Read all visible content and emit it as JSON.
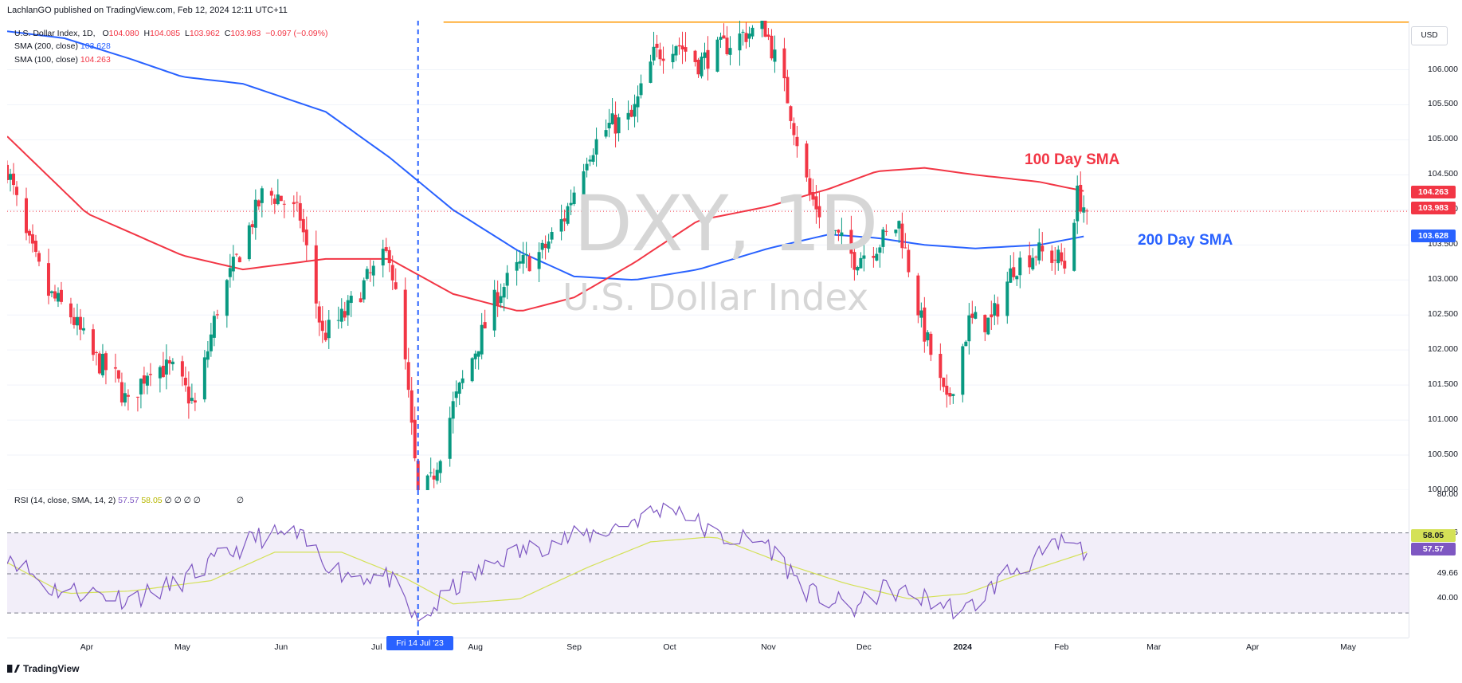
{
  "header": {
    "publisher_line": "LachlanGO published on TradingView.com, Feb 12, 2024 12:11 UTC+11"
  },
  "legend": {
    "symbol": "U.S. Dollar Index, 1D,",
    "o_label": "O",
    "o_value": "104.080",
    "h_label": "H",
    "h_value": "104.085",
    "l_label": "L",
    "l_value": "103.962",
    "c_label": "C",
    "c_value": "103.983",
    "change": "−0.097 (−0.09%)",
    "sma200_label": "SMA (200, close)",
    "sma200_value": "103.628",
    "sma100_label": "SMA (100, close)",
    "sma100_value": "104.263",
    "rsi_label": "RSI (14, close, SMA, 14, 2)",
    "rsi_value": "57.57",
    "rsi_sma_value": "58.05",
    "rsi_extra": "∅ ∅ ∅ ∅",
    "rsi_extra2": "∅"
  },
  "watermark": {
    "symbol": "DXY, 1D",
    "name": "U.S. Dollar Index"
  },
  "annotations": {
    "sma100": "100 Day SMA",
    "sma200": "200 Day SMA"
  },
  "price_axis": {
    "currency_button": "USD",
    "ticks": [
      "106.000",
      "105.500",
      "105.000",
      "104.500",
      "104.000",
      "103.500",
      "103.000",
      "102.500",
      "102.000",
      "101.500",
      "101.000",
      "100.500",
      "100.000"
    ],
    "badges": {
      "sma100": "104.263",
      "close": "103.983",
      "sma200": "103.628"
    }
  },
  "rsi_axis": {
    "ticks": [
      "80.00",
      "65.46",
      "49.66",
      "40.00"
    ],
    "badges": {
      "sma": "58.05",
      "rsi": "57.57"
    }
  },
  "time_axis": {
    "months": [
      "Apr",
      "May",
      "Jun",
      "Jul",
      "Aug",
      "Sep",
      "Oct",
      "Nov",
      "Dec",
      "2024",
      "Feb",
      "Mar",
      "Apr",
      "May"
    ],
    "crosshair_label": "Fri 14 Jul '23"
  },
  "footer": {
    "brand": "TradingView"
  },
  "colors": {
    "up": "#089981",
    "down": "#f23645",
    "sma100": "#f23645",
    "sma200": "#2962ff",
    "rsi": "#7e57c2",
    "rsi_sma": "#d4e157",
    "resistance": "#ff9800",
    "crosshair": "#2962ff"
  },
  "chart_data": {
    "type": "candlestick",
    "symbol": "DXY",
    "timeframe": "1D",
    "y_range": [
      100.0,
      106.7
    ],
    "x_range": [
      "2023-03-07",
      "2024-05-20"
    ],
    "resistance_level": 106.68,
    "crosshair_date": "2023-07-14",
    "sma100": {
      "dates": [
        "2023-03-07",
        "2023-04-01",
        "2023-05-01",
        "2023-05-20",
        "2023-06-15",
        "2023-07-05",
        "2023-07-25",
        "2023-08-15",
        "2023-09-01",
        "2023-09-20",
        "2023-10-10",
        "2023-11-01",
        "2023-11-20",
        "2023-12-05",
        "2023-12-20",
        "2024-01-05",
        "2024-01-25",
        "2024-02-09"
      ],
      "values": [
        105.05,
        103.95,
        103.35,
        103.15,
        103.3,
        103.3,
        102.8,
        102.55,
        102.75,
        103.25,
        103.85,
        104.05,
        104.3,
        104.55,
        104.6,
        104.5,
        104.4,
        104.26
      ]
    },
    "sma200": {
      "dates": [
        "2023-03-07",
        "2023-03-25",
        "2023-04-15",
        "2023-05-01",
        "2023-05-20",
        "2023-06-15",
        "2023-07-05",
        "2023-07-25",
        "2023-08-15",
        "2023-09-01",
        "2023-09-20",
        "2023-10-10",
        "2023-11-01",
        "2023-11-20",
        "2023-12-05",
        "2023-12-20",
        "2024-01-05",
        "2024-01-25",
        "2024-02-09"
      ],
      "values": [
        106.55,
        106.45,
        106.15,
        105.9,
        105.8,
        105.4,
        104.75,
        104.0,
        103.4,
        103.05,
        103.0,
        103.15,
        103.45,
        103.65,
        103.6,
        103.5,
        103.45,
        103.5,
        103.63
      ]
    },
    "price": {
      "dates": [
        "2023-03-07",
        "2023-03-13",
        "2023-03-20",
        "2023-03-27",
        "2023-04-03",
        "2023-04-10",
        "2023-04-14",
        "2023-04-21",
        "2023-04-28",
        "2023-05-05",
        "2023-05-12",
        "2023-05-19",
        "2023-05-26",
        "2023-05-31",
        "2023-06-07",
        "2023-06-14",
        "2023-06-21",
        "2023-06-28",
        "2023-07-05",
        "2023-07-10",
        "2023-07-14",
        "2023-07-18",
        "2023-07-25",
        "2023-08-01",
        "2023-08-08",
        "2023-08-15",
        "2023-08-22",
        "2023-08-29",
        "2023-09-05",
        "2023-09-12",
        "2023-09-19",
        "2023-09-26",
        "2023-10-03",
        "2023-10-10",
        "2023-10-17",
        "2023-10-24",
        "2023-10-31",
        "2023-11-07",
        "2023-11-14",
        "2023-11-21",
        "2023-11-28",
        "2023-12-05",
        "2023-12-12",
        "2023-12-19",
        "2023-12-27",
        "2024-01-03",
        "2024-01-10",
        "2024-01-17",
        "2024-01-24",
        "2024-01-31",
        "2024-02-02",
        "2024-02-06",
        "2024-02-09"
      ],
      "values": [
        104.6,
        103.6,
        102.8,
        102.5,
        101.9,
        101.6,
        101.2,
        101.8,
        101.7,
        101.2,
        102.6,
        103.4,
        104.2,
        104.2,
        103.9,
        102.2,
        102.5,
        103.0,
        103.4,
        101.8,
        99.9,
        100.1,
        101.2,
        102.0,
        102.8,
        103.2,
        103.4,
        103.9,
        104.8,
        105.2,
        105.3,
        106.2,
        106.4,
        106.1,
        106.3,
        106.5,
        106.6,
        105.6,
        104.2,
        103.7,
        103.3,
        103.5,
        103.8,
        102.4,
        101.2,
        102.4,
        102.4,
        103.2,
        103.4,
        103.3,
        103.2,
        104.2,
        103.98
      ]
    }
  },
  "rsi_data": {
    "range": [
      25,
      82
    ],
    "upper_band": 65.46,
    "middle": 49.66,
    "lower_band": 34.5,
    "rsi": {
      "dates": [
        "2023-03-07",
        "2023-03-20",
        "2023-04-05",
        "2023-04-14",
        "2023-04-28",
        "2023-05-12",
        "2023-05-25",
        "2023-06-05",
        "2023-06-20",
        "2023-07-05",
        "2023-07-14",
        "2023-07-25",
        "2023-08-10",
        "2023-08-25",
        "2023-09-10",
        "2023-09-25",
        "2023-10-03",
        "2023-10-15",
        "2023-10-31",
        "2023-11-14",
        "2023-11-28",
        "2023-12-08",
        "2023-12-20",
        "2024-01-02",
        "2024-01-15",
        "2024-01-25",
        "2024-02-02",
        "2024-02-09"
      ],
      "values": [
        58,
        44,
        42,
        40,
        45,
        55,
        64,
        65,
        50,
        48,
        30,
        44,
        56,
        62,
        66,
        73,
        76,
        64,
        62,
        42,
        36,
        44,
        40,
        35,
        50,
        56,
        62,
        57.57
      ]
    },
    "sma": {
      "dates": [
        "2023-03-07",
        "2023-03-25",
        "2023-04-15",
        "2023-05-10",
        "2023-05-30",
        "2023-06-20",
        "2023-07-10",
        "2023-07-25",
        "2023-08-15",
        "2023-09-05",
        "2023-09-25",
        "2023-10-15",
        "2023-11-05",
        "2023-11-25",
        "2023-12-15",
        "2024-01-02",
        "2024-01-20",
        "2024-02-09"
      ],
      "values": [
        54,
        42,
        43,
        47,
        58,
        58,
        48,
        38,
        40,
        52,
        62,
        64,
        54,
        46,
        40,
        42,
        50,
        58.05
      ]
    }
  }
}
